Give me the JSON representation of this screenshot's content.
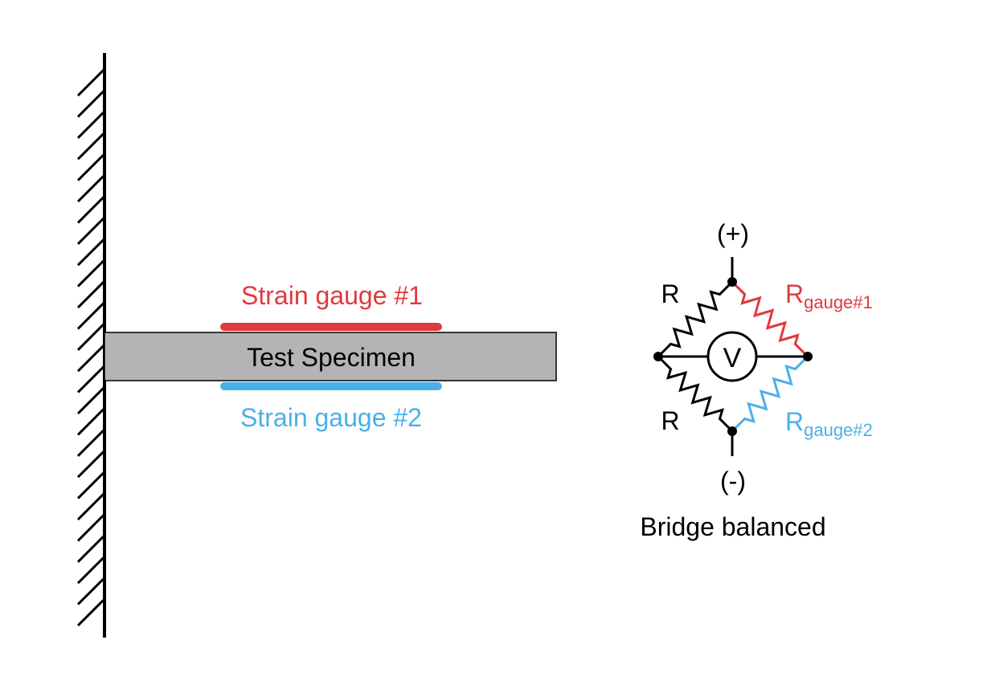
{
  "specimen": {
    "label": "Test Specimen",
    "gauge1_label": "Strain gauge #1",
    "gauge2_label": "Strain gauge #2"
  },
  "bridge": {
    "top_terminal": "(+)",
    "bottom_terminal": "(-)",
    "meter_symbol": "V",
    "r_upper_left": "R",
    "r_lower_left": "R",
    "r_gauge1_main": "R",
    "r_gauge1_sub": "gauge#1",
    "r_gauge2_main": "R",
    "r_gauge2_sub": "gauge#2",
    "status": "Bridge balanced"
  },
  "colors": {
    "gauge1": "#e0393e",
    "gauge2": "#4ab0e8",
    "specimen_fill": "#b4b4b4",
    "ink": "#000000"
  }
}
